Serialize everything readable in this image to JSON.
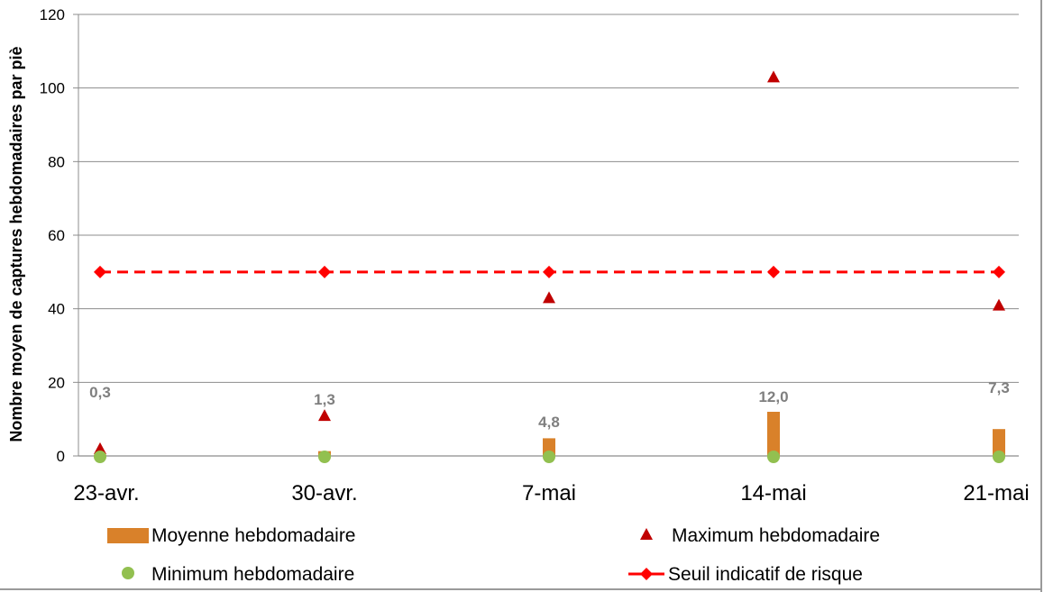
{
  "chart_data": {
    "type": "bar",
    "title": "",
    "xlabel": "",
    "ylabel": "Nombre moyen de captures hebdomadaires par piè",
    "ylim": [
      0,
      120
    ],
    "yticks": [
      0,
      20,
      40,
      60,
      80,
      100,
      120
    ],
    "categories": [
      "23-avr.",
      "30-avr.",
      "7-mai",
      "14-mai",
      "21-mai"
    ],
    "grid": true,
    "legend_position": "bottom",
    "series": [
      {
        "name": "Moyenne hebdomadaire",
        "kind": "bar",
        "color": "#d9812a",
        "values": [
          0.3,
          1.3,
          4.8,
          12.0,
          7.3
        ],
        "labels": [
          "0,3",
          "1,3",
          "4,8",
          "12,0",
          "7,3"
        ]
      },
      {
        "name": "Maximum hebdomadaire",
        "kind": "triangle-marker",
        "color": "#c00000",
        "values": [
          2,
          11,
          43,
          103,
          41
        ]
      },
      {
        "name": "Minimum hebdomadaire",
        "kind": "circle-marker",
        "color": "#92c050",
        "values": [
          0,
          0,
          0,
          0,
          0
        ]
      },
      {
        "name": "Seuil indicatif de risque",
        "kind": "dashed-line-diamond",
        "color": "#ff0000",
        "values": [
          50,
          50,
          50,
          50,
          50
        ]
      }
    ]
  }
}
